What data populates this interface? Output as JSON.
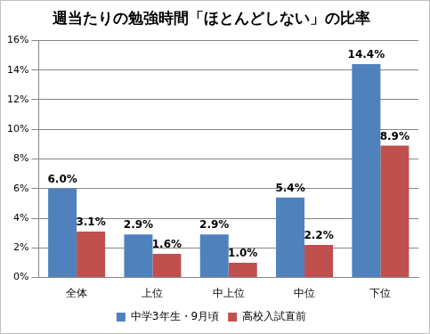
{
  "chart_data": {
    "type": "bar",
    "title": "週当たりの勉強時間「ほとんどしない」の比率",
    "categories": [
      "全体",
      "上位",
      "中上位",
      "中位",
      "下位"
    ],
    "series": [
      {
        "name": "中学3年生・9月頃",
        "color": "#4f81bd",
        "values": [
          6.0,
          2.9,
          2.9,
          5.4,
          14.4
        ],
        "value_labels": [
          "6.0%",
          "2.9%",
          "2.9%",
          "5.4%",
          "14.4%"
        ]
      },
      {
        "name": "高校入試直前",
        "color": "#c0504d",
        "values": [
          3.1,
          1.6,
          1.0,
          2.2,
          8.9
        ],
        "value_labels": [
          "3.1%",
          "1.6%",
          "1.0%",
          "2.2%",
          "8.9%"
        ]
      }
    ],
    "ylim": [
      0,
      16
    ],
    "yticks": [
      {
        "value": 0,
        "label": "0%"
      },
      {
        "value": 2,
        "label": "2%"
      },
      {
        "value": 4,
        "label": "4%"
      },
      {
        "value": 6,
        "label": "6%"
      },
      {
        "value": 8,
        "label": "8%"
      },
      {
        "value": 10,
        "label": "10%"
      },
      {
        "value": 12,
        "label": "12%"
      },
      {
        "value": 14,
        "label": "14%"
      },
      {
        "value": 16,
        "label": "16%"
      }
    ],
    "grid": true,
    "legend": "bottom",
    "data_labels": true
  }
}
